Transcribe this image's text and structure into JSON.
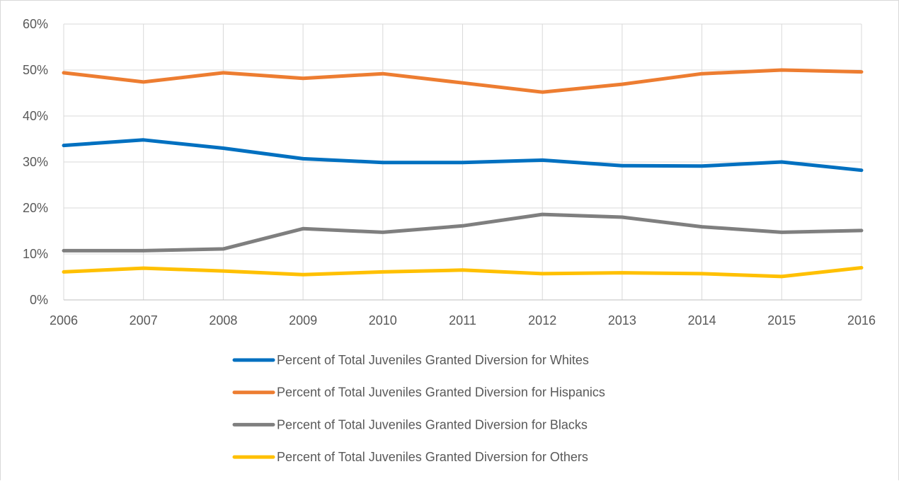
{
  "chart_data": {
    "type": "line",
    "title": "",
    "xlabel": "",
    "ylabel": "",
    "x": [
      "2006",
      "2007",
      "2008",
      "2009",
      "2010",
      "2011",
      "2012",
      "2013",
      "2014",
      "2015",
      "2016"
    ],
    "ylim": [
      0,
      60
    ],
    "y_ticks": [
      "0%",
      "10%",
      "20%",
      "30%",
      "40%",
      "50%",
      "60%"
    ],
    "y_tick_values": [
      0,
      10,
      20,
      30,
      40,
      50,
      60
    ],
    "grid": true,
    "legend_position": "bottom",
    "series": [
      {
        "name": "Percent of Total Juveniles Granted Diversion for Whites",
        "color": "#0070C0",
        "values": [
          33.6,
          34.8,
          33.0,
          30.7,
          29.9,
          29.9,
          30.4,
          29.2,
          29.1,
          30.0,
          28.2
        ]
      },
      {
        "name": "Percent of Total Juveniles Granted Diversion for Hispanics",
        "color": "#ED7D31",
        "values": [
          49.4,
          47.4,
          49.4,
          48.2,
          49.2,
          47.2,
          45.2,
          46.9,
          49.2,
          50.0,
          49.6
        ]
      },
      {
        "name": "Percent of Total Juveniles Granted Diversion for Blacks",
        "color": "#7F7F7F",
        "values": [
          10.7,
          10.7,
          11.1,
          15.5,
          14.7,
          16.1,
          18.6,
          18.0,
          15.9,
          14.7,
          15.1
        ]
      },
      {
        "name": "Percent of Total Juveniles Granted Diversion for Others",
        "color": "#FFC000",
        "values": [
          6.1,
          6.9,
          6.3,
          5.5,
          6.1,
          6.5,
          5.7,
          5.9,
          5.7,
          5.1,
          7.0
        ]
      }
    ]
  }
}
